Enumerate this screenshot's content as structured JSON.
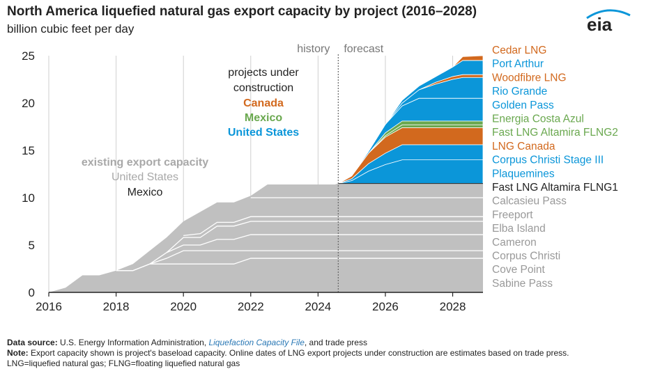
{
  "title": "North America liquefied natural gas export capacity by project (2016–2028)",
  "subtitle": "billion cubic feet per day",
  "logo_text": "eia",
  "colors": {
    "existing": "#c0c0c0",
    "existing_lines": "#ffffff",
    "canada": "#d2691e",
    "mexico": "#6aa84f",
    "united_states": "#0b96d9",
    "grid": "#cfcfcf",
    "divider": "#666666"
  },
  "chart_data": {
    "type": "area",
    "title": "North America liquefied natural gas export capacity by project (2016–2028)",
    "ylabel": "billion cubic feet per day",
    "xlim": [
      2016,
      2028.9
    ],
    "ylim": [
      0,
      25
    ],
    "x_ticks": [
      "2016",
      "2018",
      "2020",
      "2022",
      "2024",
      "2026",
      "2028"
    ],
    "y_ticks": [
      "0",
      "5",
      "10",
      "15",
      "20",
      "25"
    ],
    "grid": "vertical",
    "history_label": "history",
    "forecast_label": "forecast",
    "history_forecast_divider_x": 2024.6,
    "annotations": {
      "under_construction_line1": "projects under",
      "under_construction_line2": "construction",
      "canada": "Canada",
      "mexico": "Mexico",
      "united_states": "United States",
      "existing_title": "existing export capacity",
      "existing_us": "United States",
      "existing_mexico": "Mexico"
    },
    "existing_total": {
      "x": [
        2016,
        2016.5,
        2017,
        2017.5,
        2018,
        2018.5,
        2019,
        2019.5,
        2020,
        2020.5,
        2021,
        2021.5,
        2022,
        2022.5,
        2023,
        2023.5,
        2024,
        2024.5,
        2024.6,
        2028.9
      ],
      "y": [
        0,
        0.5,
        1.8,
        1.8,
        2.3,
        3.0,
        4.4,
        5.8,
        7.5,
        8.5,
        9.5,
        9.5,
        10.2,
        11.4,
        11.4,
        11.4,
        11.4,
        11.4,
        11.5,
        11.5
      ]
    },
    "existing_dividers": {
      "x": [
        2016,
        2017,
        2017.5,
        2018,
        2018.5,
        2019,
        2019.5,
        2020,
        2020.5,
        2021,
        2021.5,
        2022,
        2022.5,
        2024.6,
        2028.9
      ],
      "levels": [
        [
          0,
          0,
          0,
          2.3,
          2.3,
          3.0,
          3.0,
          3.0,
          3.0,
          3.0,
          3.0,
          3.6,
          3.6,
          3.6,
          3.6
        ],
        [
          0,
          0,
          0,
          2.3,
          2.3,
          3.0,
          3.6,
          4.4,
          4.4,
          4.4,
          4.4,
          4.4,
          4.4,
          4.4,
          4.4
        ],
        [
          0,
          0,
          0,
          0,
          0,
          3.0,
          4.2,
          5.0,
          5.0,
          5.6,
          5.6,
          6.1,
          6.1,
          6.1,
          6.1
        ],
        [
          0,
          0,
          0,
          0,
          0,
          0,
          4.2,
          5.8,
          5.8,
          7.0,
          7.0,
          7.5,
          7.5,
          7.5,
          7.5
        ],
        [
          0,
          0,
          0,
          0,
          0,
          0,
          0,
          6.0,
          6.2,
          7.4,
          7.4,
          8.0,
          8.0,
          8.0,
          8.0
        ],
        [
          0,
          0,
          0,
          0,
          0,
          0,
          0,
          0,
          0,
          0,
          0,
          10.0,
          10.0,
          10.0,
          10.0
        ]
      ]
    },
    "construction": {
      "x": [
        2024.6,
        2025.0,
        2025.5,
        2026.0,
        2026.5,
        2027.0,
        2027.5,
        2028.0,
        2028.3,
        2028.9
      ],
      "layers": [
        {
          "name": "Fast LNG Altamira FLNG1",
          "group": "mexico",
          "values": [
            0,
            0,
            0,
            0,
            0,
            0,
            0,
            0,
            0,
            0
          ]
        },
        {
          "name": "Plaquemines",
          "group": "united_states",
          "values": [
            0,
            0.3,
            1.3,
            2.0,
            2.5,
            2.5,
            2.5,
            2.5,
            2.5,
            2.5
          ]
        },
        {
          "name": "Corpus Christi Stage III",
          "group": "united_states",
          "values": [
            0,
            0.2,
            0.8,
            1.2,
            1.6,
            1.6,
            1.6,
            1.6,
            1.6,
            1.6
          ]
        },
        {
          "name": "LNG Canada",
          "group": "canada",
          "values": [
            0,
            0.3,
            1.1,
            1.7,
            1.8,
            1.8,
            1.8,
            1.8,
            1.8,
            1.8
          ]
        },
        {
          "name": "Fast LNG Altamira FLNG2",
          "group": "mexico",
          "values": [
            0,
            0,
            0,
            0.15,
            0.3,
            0.3,
            0.3,
            0.3,
            0.3,
            0.3
          ]
        },
        {
          "name": "Energia Costa Azul",
          "group": "mexico",
          "values": [
            0,
            0,
            0,
            0.3,
            0.4,
            0.4,
            0.4,
            0.4,
            0.4,
            0.4
          ]
        },
        {
          "name": "Golden Pass",
          "group": "united_states",
          "values": [
            0,
            0,
            0.2,
            0.9,
            1.6,
            2.4,
            2.4,
            2.4,
            2.4,
            2.4
          ]
        },
        {
          "name": "Rio Grande",
          "group": "united_states",
          "values": [
            0,
            0,
            0,
            0,
            0.3,
            0.9,
            1.5,
            2.0,
            2.2,
            2.2
          ]
        },
        {
          "name": "Woodfibre LNG",
          "group": "canada",
          "values": [
            0,
            0,
            0,
            0,
            0,
            0,
            0.2,
            0.3,
            0.3,
            0.3
          ]
        },
        {
          "name": "Port Arthur",
          "group": "united_states",
          "values": [
            0,
            0,
            0,
            0,
            0.3,
            0.4,
            0.6,
            1.0,
            1.5,
            1.5
          ]
        },
        {
          "name": "Cedar LNG",
          "group": "canada",
          "values": [
            0,
            0,
            0,
            0,
            0,
            0,
            0,
            0,
            0.4,
            0.5
          ]
        }
      ]
    },
    "legend": [
      {
        "label": "Cedar LNG",
        "group": "canada"
      },
      {
        "label": "Port Arthur",
        "group": "united_states"
      },
      {
        "label": "Woodfibre LNG",
        "group": "canada"
      },
      {
        "label": "Rio Grande",
        "group": "united_states"
      },
      {
        "label": "Golden Pass",
        "group": "united_states"
      },
      {
        "label": "Energia Costa Azul",
        "group": "mexico"
      },
      {
        "label": "Fast LNG Altamira FLNG2",
        "group": "mexico"
      },
      {
        "label": "LNG Canada",
        "group": "canada"
      },
      {
        "label": "Corpus Christi Stage III",
        "group": "united_states"
      },
      {
        "label": "Plaquemines",
        "group": "united_states"
      },
      {
        "label": "Fast LNG Altamira FLNG1",
        "group": "mexico_existing"
      },
      {
        "label": "Calcasieu Pass",
        "group": "existing"
      },
      {
        "label": "Freeport",
        "group": "existing"
      },
      {
        "label": "Elba Island",
        "group": "existing"
      },
      {
        "label": "Cameron",
        "group": "existing"
      },
      {
        "label": "Corpus Christi",
        "group": "existing"
      },
      {
        "label": "Cove Point",
        "group": "existing"
      },
      {
        "label": "Sabine Pass",
        "group": "existing"
      }
    ]
  },
  "notes": {
    "source_label": "Data source:",
    "source_text_1": " U.S. Energy Information Administration, ",
    "source_link": "Liquefaction Capacity File",
    "source_text_2": ", and trade press",
    "note_label": "Note:",
    "note_text": " Export capacity shown is project's baseload capacity. Online dates of LNG export projects under construction are estimates based on trade press.",
    "abbrev_text": "LNG=liquefied natural gas; FLNG=floating liquefied natural gas"
  }
}
